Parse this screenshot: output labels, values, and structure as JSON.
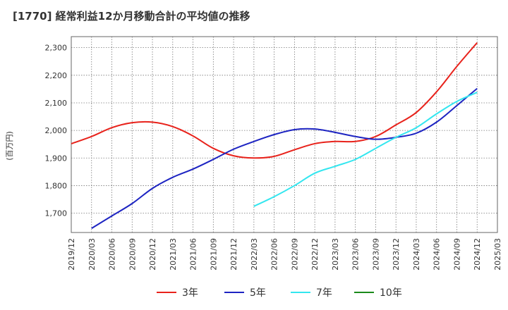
{
  "title": "[1770]  経常利益12か月移動合計の平均値の推移",
  "chart_data": {
    "type": "line",
    "ylabel": "(百万円)",
    "xlabel": "",
    "ylim": [
      1630,
      2340
    ],
    "yticks": [
      1700,
      1800,
      1900,
      2000,
      2100,
      2200,
      2300
    ],
    "yticklabels": [
      "1,700",
      "1,800",
      "1,900",
      "2,000",
      "2,100",
      "2,200",
      "2,300"
    ],
    "xlim": [
      "2019-12",
      "2025-03"
    ],
    "xticklabels": [
      "2019/12",
      "2020/03",
      "2020/06",
      "2020/09",
      "2020/12",
      "2021/03",
      "2021/06",
      "2021/09",
      "2021/12",
      "2022/03",
      "2022/06",
      "2022/09",
      "2022/12",
      "2023/03",
      "2023/06",
      "2023/09",
      "2023/12",
      "2024/03",
      "2024/06",
      "2024/09",
      "2024/12",
      "2025/03"
    ],
    "grid": true,
    "legend_position": "bottom",
    "series": [
      {
        "name": "3年",
        "color": "#e8221b",
        "points": [
          [
            "2019-12",
            1952
          ],
          [
            "2020-03",
            1978
          ],
          [
            "2020-06",
            2010
          ],
          [
            "2020-09",
            2028
          ],
          [
            "2020-12",
            2030
          ],
          [
            "2021-03",
            2014
          ],
          [
            "2021-06",
            1980
          ],
          [
            "2021-09",
            1935
          ],
          [
            "2021-12",
            1908
          ],
          [
            "2022-03",
            1900
          ],
          [
            "2022-06",
            1906
          ],
          [
            "2022-09",
            1930
          ],
          [
            "2022-12",
            1952
          ],
          [
            "2023-03",
            1960
          ],
          [
            "2023-06",
            1960
          ],
          [
            "2023-09",
            1978
          ],
          [
            "2023-12",
            2020
          ],
          [
            "2024-03",
            2065
          ],
          [
            "2024-06",
            2140
          ],
          [
            "2024-09",
            2232
          ],
          [
            "2024-12",
            2318
          ]
        ]
      },
      {
        "name": "5年",
        "color": "#1d24c2",
        "points": [
          [
            "2020-03",
            1645
          ],
          [
            "2020-06",
            1690
          ],
          [
            "2020-09",
            1735
          ],
          [
            "2020-12",
            1790
          ],
          [
            "2021-03",
            1830
          ],
          [
            "2021-06",
            1860
          ],
          [
            "2021-09",
            1895
          ],
          [
            "2021-12",
            1932
          ],
          [
            "2022-03",
            1960
          ],
          [
            "2022-06",
            1985
          ],
          [
            "2022-09",
            2003
          ],
          [
            "2022-12",
            2005
          ],
          [
            "2023-03",
            1993
          ],
          [
            "2023-06",
            1978
          ],
          [
            "2023-09",
            1968
          ],
          [
            "2023-12",
            1975
          ],
          [
            "2024-03",
            1990
          ],
          [
            "2024-06",
            2030
          ],
          [
            "2024-09",
            2090
          ],
          [
            "2024-12",
            2152
          ]
        ]
      },
      {
        "name": "7年",
        "color": "#33e6ef",
        "points": [
          [
            "2022-03",
            1725
          ],
          [
            "2022-06",
            1760
          ],
          [
            "2022-09",
            1800
          ],
          [
            "2022-12",
            1845
          ],
          [
            "2023-03",
            1870
          ],
          [
            "2023-06",
            1895
          ],
          [
            "2023-09",
            1935
          ],
          [
            "2023-12",
            1975
          ],
          [
            "2024-03",
            2010
          ],
          [
            "2024-06",
            2060
          ],
          [
            "2024-09",
            2105
          ],
          [
            "2024-12",
            2138
          ]
        ]
      },
      {
        "name": "10年",
        "color": "#1a8a1a",
        "points": []
      }
    ]
  }
}
